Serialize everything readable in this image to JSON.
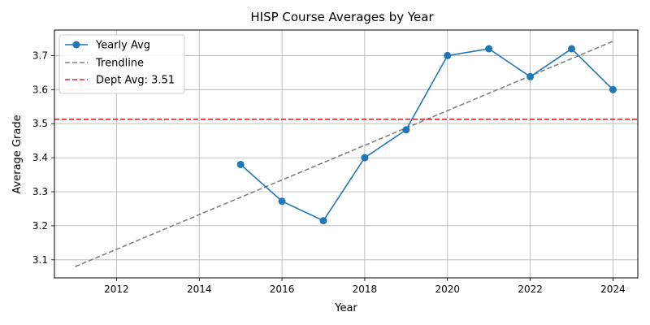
{
  "chart_data": {
    "type": "line",
    "title": "HISP Course Averages by Year",
    "xlabel": "Year",
    "ylabel": "Average Grade",
    "xlim": [
      2010.5,
      2024.6
    ],
    "ylim": [
      3.047,
      3.775
    ],
    "x_ticks": [
      2012,
      2014,
      2016,
      2018,
      2020,
      2022,
      2024
    ],
    "y_ticks": [
      3.1,
      3.2,
      3.3,
      3.4,
      3.5,
      3.6,
      3.7
    ],
    "grid": true,
    "legend_position": "upper-left",
    "series": [
      {
        "name": "Yearly Avg",
        "kind": "line-markers",
        "color": "#1f77b4",
        "x": [
          2015,
          2016,
          2017,
          2018,
          2019,
          2020,
          2021,
          2022,
          2023,
          2024
        ],
        "y": [
          3.38,
          3.272,
          3.215,
          3.4,
          3.482,
          3.7,
          3.72,
          3.638,
          3.72,
          3.6
        ]
      },
      {
        "name": "Trendline",
        "kind": "dashed-line",
        "color": "#808080",
        "x": [
          2011,
          2024
        ],
        "y": [
          3.08,
          3.742
        ]
      },
      {
        "name": "Dept Avg: 3.51",
        "kind": "horizontal-line",
        "color": "#d62728",
        "y": 3.513
      }
    ]
  }
}
